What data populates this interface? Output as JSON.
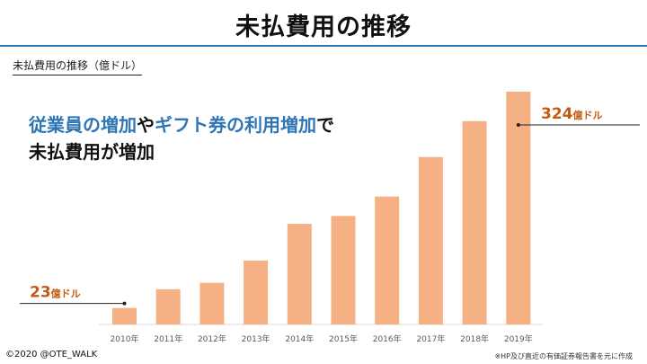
{
  "slide": {
    "title": "未払費用の推移",
    "subtitle": "未払費用の推移（億ドル）",
    "headline": {
      "line1": [
        {
          "text": "従業員の増加",
          "style": "blue"
        },
        {
          "text": "や",
          "style": "dark"
        },
        {
          "text": "ギフト券の利用増加",
          "style": "blue"
        },
        {
          "text": "で",
          "style": "dark"
        }
      ],
      "line2": "未払費用が増加"
    },
    "footer": {
      "copyright": "©2020 @OTE_WALK",
      "source": "※HP及び直近の有価証券報告書を元に作成"
    }
  },
  "colors": {
    "bar": "#f5b183",
    "callout": "#c55a11",
    "accent_blue": "#2e75b6",
    "axis_line": "#d9d9d9",
    "tick_text": "#595959"
  },
  "chart_data": {
    "type": "bar",
    "categories": [
      "2010年",
      "2011年",
      "2012年",
      "2013年",
      "2014年",
      "2015年",
      "2016年",
      "2017年",
      "2018年",
      "2019年"
    ],
    "values": [
      23,
      49,
      58,
      89,
      140,
      151,
      178,
      233,
      283,
      324
    ],
    "ylim": [
      0,
      324
    ],
    "grid": false,
    "legend": "none",
    "annotations": [
      {
        "category": "2010年",
        "value": 23,
        "number": "23",
        "unit": "億ドル",
        "side": "left"
      },
      {
        "category": "2019年",
        "value": 324,
        "number": "324",
        "unit": "億ドル",
        "side": "right"
      }
    ]
  }
}
